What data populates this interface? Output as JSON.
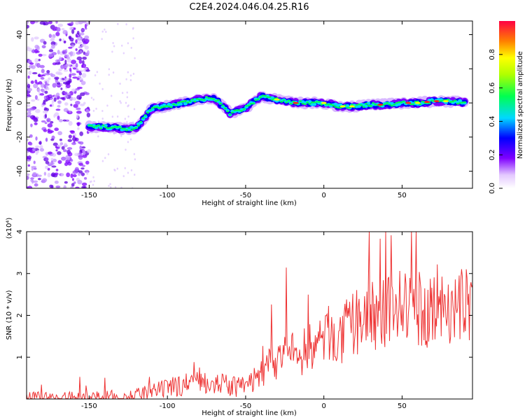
{
  "chart_data": [
    {
      "type": "heatmap",
      "title": "C2E4.2024.046.04.25.R16",
      "xlabel": "Height of straight line (km)",
      "ylabel": "Frequency (Hz)",
      "xlim": [
        -190,
        95
      ],
      "ylim": [
        -50,
        48
      ],
      "xticks": [
        "-150",
        "-100",
        "-50",
        "0",
        "50"
      ],
      "yticks": [
        "-40",
        "-20",
        "0",
        "20",
        "40"
      ],
      "colorbar": {
        "label": "Normalized spectral amplitude",
        "range": [
          0.0,
          1.0
        ],
        "ticks": [
          "0.0",
          "0.2",
          "0.4",
          "0.6",
          "0.8"
        ]
      },
      "ridge": {
        "x": [
          -150,
          -140,
          -130,
          -120,
          -110,
          -100,
          -90,
          -80,
          -70,
          -60,
          -50,
          -40,
          -30,
          -20,
          -10,
          0,
          10,
          20,
          30,
          40,
          50,
          60,
          70,
          80,
          90
        ],
        "y": [
          -14,
          -14,
          -15,
          -15,
          -3,
          -2,
          0,
          2,
          3,
          -6,
          -3,
          4,
          2,
          0,
          0,
          0,
          -2,
          -2,
          -1,
          -1,
          0,
          0,
          1,
          1,
          0
        ]
      },
      "noise_region_x": [
        -190,
        -150
      ],
      "grid": false
    },
    {
      "type": "line",
      "xlabel": "Height of straight line (km)",
      "ylabel": "SNR (10 * v/v)",
      "y_multiplier": "(x10⁴)",
      "xlim": [
        -190,
        95
      ],
      "ylim": [
        0,
        4
      ],
      "xticks": [
        "-150",
        "-100",
        "-50",
        "0",
        "50"
      ],
      "yticks": [
        "1",
        "2",
        "3",
        "4"
      ],
      "series": [
        {
          "color": "#ee3333",
          "x": [
            -190,
            -170,
            -150,
            -130,
            -120,
            -110,
            -100,
            -90,
            -80,
            -70,
            -60,
            -50,
            -45,
            -40,
            -35,
            -30,
            -25,
            -20,
            -15,
            -10,
            -5,
            0,
            5,
            10,
            15,
            20,
            25,
            30,
            35,
            40,
            45,
            50,
            55,
            60,
            65,
            70,
            75,
            80,
            85,
            90,
            95
          ],
          "values": [
            0.02,
            0.02,
            0.03,
            0.05,
            0.08,
            0.15,
            0.25,
            0.35,
            0.45,
            0.4,
            0.3,
            0.3,
            0.45,
            0.6,
            0.8,
            0.9,
            1.2,
            1.1,
            1.0,
            1.3,
            1.2,
            1.5,
            1.6,
            1.3,
            1.7,
            1.8,
            2.0,
            2.1,
            1.9,
            2.2,
            2.0,
            2.3,
            2.1,
            2.2,
            2.0,
            2.4,
            2.2,
            2.3,
            2.0,
            2.4,
            2.2
          ]
        }
      ],
      "grid": false
    }
  ]
}
